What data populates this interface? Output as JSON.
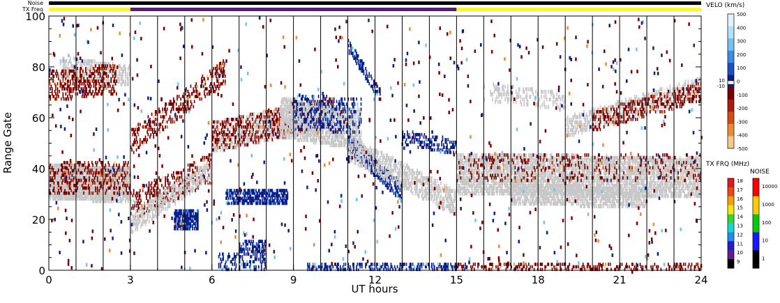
{
  "chart_data": {
    "type": "heatmap",
    "xlabel": "UT hours",
    "ylabel": "Range Gate",
    "xlim": [
      0,
      24
    ],
    "ylim": [
      0,
      100
    ],
    "x_ticks": [
      "0",
      "3",
      "6",
      "9",
      "12",
      "15",
      "18",
      "21",
      "24"
    ],
    "y_ticks": [
      "0",
      "20",
      "40",
      "60",
      "80",
      "100"
    ],
    "x_minor_step": 1,
    "y_minor_step": 5,
    "vertical_gridlines_hours": [
      1,
      2,
      3,
      4,
      5,
      6,
      7,
      8,
      9,
      10,
      11,
      12,
      13,
      14,
      15,
      16,
      17,
      18,
      19,
      20,
      21,
      22,
      23
    ],
    "top_bars": {
      "noise_label": "Noise",
      "txfreq_label": "TX Freq",
      "noise_color": "#000000",
      "txfreq_segments": [
        {
          "start": 0,
          "end": 3,
          "color": "#ffff00"
        },
        {
          "start": 3,
          "end": 15,
          "color": "#5a1a78"
        },
        {
          "start": 15,
          "end": 24,
          "color": "#ffff00"
        }
      ]
    },
    "ground_scatter_color": "#c8c8c8",
    "scatter_bands": [
      {
        "kind": "ground",
        "t0": 0,
        "t1": 3,
        "g0": 35,
        "g1": 33,
        "w": 12,
        "density": 0.8
      },
      {
        "kind": "neg",
        "t0": 0,
        "t1": 3,
        "g0": 36,
        "g1": 36,
        "w": 12,
        "density": 0.28
      },
      {
        "kind": "ground",
        "t0": 0.4,
        "t1": 3,
        "g0": 80,
        "g1": 76,
        "w": 6,
        "density": 0.45
      },
      {
        "kind": "neg",
        "t0": 0,
        "t1": 2.5,
        "g0": 72,
        "g1": 75,
        "w": 10,
        "density": 0.35
      },
      {
        "kind": "neg",
        "t0": 3,
        "t1": 6.5,
        "g0": 50,
        "g1": 78,
        "w": 8,
        "density": 0.3
      },
      {
        "kind": "neg",
        "t0": 3,
        "t1": 6,
        "g0": 25,
        "g1": 40,
        "w": 10,
        "density": 0.3
      },
      {
        "kind": "ground",
        "t0": 3,
        "t1": 6,
        "g0": 18,
        "g1": 40,
        "w": 6,
        "density": 0.45
      },
      {
        "kind": "pos",
        "t0": 4.6,
        "t1": 5.5,
        "g0": 19,
        "g1": 20,
        "w": 6,
        "density": 0.85
      },
      {
        "kind": "pos",
        "t0": 6.5,
        "t1": 8.8,
        "g0": 28,
        "g1": 29,
        "w": 4,
        "density": 0.75
      },
      {
        "kind": "pos",
        "t0": 6.2,
        "t1": 8.0,
        "g0": 3,
        "g1": 3,
        "w": 5,
        "density": 0.35
      },
      {
        "kind": "pos",
        "t0": 7.0,
        "t1": 8.0,
        "g0": 9,
        "g1": 9,
        "w": 3,
        "density": 0.55
      },
      {
        "kind": "ground",
        "t0": 6,
        "t1": 10.5,
        "g0": 52,
        "g1": 62,
        "w": 10,
        "density": 0.45
      },
      {
        "kind": "neg",
        "t0": 6,
        "t1": 10.5,
        "g0": 52,
        "g1": 62,
        "w": 10,
        "density": 0.3
      },
      {
        "kind": "ground",
        "t0": 8.5,
        "t1": 11.5,
        "g0": 60,
        "g1": 55,
        "w": 14,
        "density": 0.6
      },
      {
        "kind": "pos",
        "t0": 9,
        "t1": 11.5,
        "g0": 62,
        "g1": 60,
        "w": 12,
        "density": 0.25
      },
      {
        "kind": "pos",
        "t0": 11,
        "t1": 13,
        "g0": 50,
        "g1": 30,
        "w": 6,
        "density": 0.6
      },
      {
        "kind": "ground",
        "t0": 11,
        "t1": 15,
        "g0": 48,
        "g1": 26,
        "w": 8,
        "density": 0.5
      },
      {
        "kind": "pos",
        "t0": 11,
        "t1": 12.2,
        "g0": 88,
        "g1": 68,
        "w": 3,
        "density": 0.5
      },
      {
        "kind": "pos",
        "t0": 13,
        "t1": 15,
        "g0": 52,
        "g1": 48,
        "w": 4,
        "density": 0.4
      },
      {
        "kind": "pos",
        "t0": 9.5,
        "t1": 15,
        "g0": 1,
        "g1": 1,
        "w": 2,
        "density": 0.45
      },
      {
        "kind": "ground",
        "t0": 15,
        "t1": 24,
        "g0": 38,
        "g1": 36,
        "w": 14,
        "density": 0.6
      },
      {
        "kind": "ground",
        "t0": 17,
        "t1": 22,
        "g0": 30,
        "g1": 28,
        "w": 6,
        "density": 0.55
      },
      {
        "kind": "neg",
        "t0": 15,
        "t1": 24,
        "g0": 40,
        "g1": 40,
        "w": 10,
        "density": 0.12
      },
      {
        "kind": "ground",
        "t0": 19,
        "t1": 24,
        "g0": 56,
        "g1": 72,
        "w": 6,
        "density": 0.4
      },
      {
        "kind": "neg",
        "t0": 20,
        "t1": 24,
        "g0": 58,
        "g1": 70,
        "w": 6,
        "density": 0.3
      },
      {
        "kind": "neg",
        "t0": 15,
        "t1": 24,
        "g0": 1,
        "g1": 1,
        "w": 2,
        "density": 0.3
      },
      {
        "kind": "ground",
        "t0": 16,
        "t1": 19,
        "g0": 70,
        "g1": 66,
        "w": 5,
        "density": 0.25
      }
    ],
    "velocity_colorbar": {
      "title": "VELO (km/s)",
      "labels": [
        "500",
        "400",
        "300",
        "200",
        "100",
        "0",
        "-100",
        "-200",
        "-300",
        "-400",
        "-500"
      ],
      "side_labels": [
        "10",
        "-10"
      ],
      "colors": [
        "#dff4ff",
        "#b0e2ff",
        "#70c4f4",
        "#3b8ee6",
        "#1a4fcc",
        "#0a1e8c",
        "#7a0000",
        "#b01a10",
        "#d84a10",
        "#f08a30",
        "#f8c888"
      ]
    },
    "txfreq_colorbar": {
      "title": "TX FRQ (MHz)",
      "labels": [
        "18",
        "17",
        "16",
        "15",
        "14",
        "13",
        "12",
        "11",
        "10",
        "9"
      ],
      "colors": [
        "#e01818",
        "#f04810",
        "#f8a000",
        "#f8e800",
        "#30d830",
        "#10d8d8",
        "#1890f0",
        "#2020d0",
        "#6a1a90",
        "#000000"
      ]
    },
    "noise_colorbar": {
      "title": "NOISE",
      "labels": [
        "10000",
        "1000",
        "100",
        "10",
        "1"
      ],
      "colors": [
        "#ff0000",
        "#ffcc00",
        "#00cc00",
        "#1818ff",
        "#000000"
      ]
    }
  }
}
